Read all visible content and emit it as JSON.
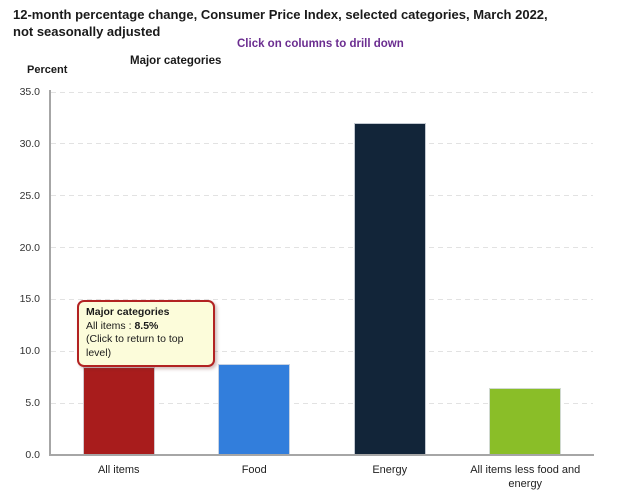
{
  "header": {
    "title": "12-month percentage change, Consumer Price Index, selected categories, March 2022, not seasonally adjusted",
    "title_line1": "12-month percentage change, Consumer Price Index, selected categories, March 2022,",
    "title_line2": "not seasonally adjusted",
    "subtitle": "Click on columns to drill down",
    "subtitle_color": "#6b2d90"
  },
  "chart_labels": {
    "group_label": "Major categories",
    "y_unit_label": "Percent"
  },
  "tooltip": {
    "header": "Major categories",
    "item_label": "All items : ",
    "item_value": "8.5%",
    "note": "(Click to return to top level)"
  },
  "chart_data": {
    "type": "bar",
    "title": "12-month percentage change, Consumer Price Index, selected categories, March 2022, not seasonally adjusted",
    "subtitle": "Click on columns to drill down",
    "categories": [
      "All items",
      "Food",
      "Energy",
      "All items less food and energy"
    ],
    "values": [
      8.5,
      8.8,
      32.0,
      6.5
    ],
    "bar_colors": [
      "#a81c1c",
      "#327edc",
      "#122539",
      "#8abe28"
    ],
    "xlabel": "Major categories",
    "ylabel": "Percent",
    "ylim": [
      0,
      35
    ],
    "ytick_step": 5,
    "ytick_labels": [
      "0.0",
      "5.0",
      "10.0",
      "15.0",
      "20.0",
      "25.0",
      "30.0",
      "35.0"
    ],
    "grid": "horizontal-dashed",
    "legend": "none",
    "annotation": {
      "text": "Major categories | All items : 8.5% | (Click to return to top level)",
      "attached_to": "All items"
    }
  }
}
